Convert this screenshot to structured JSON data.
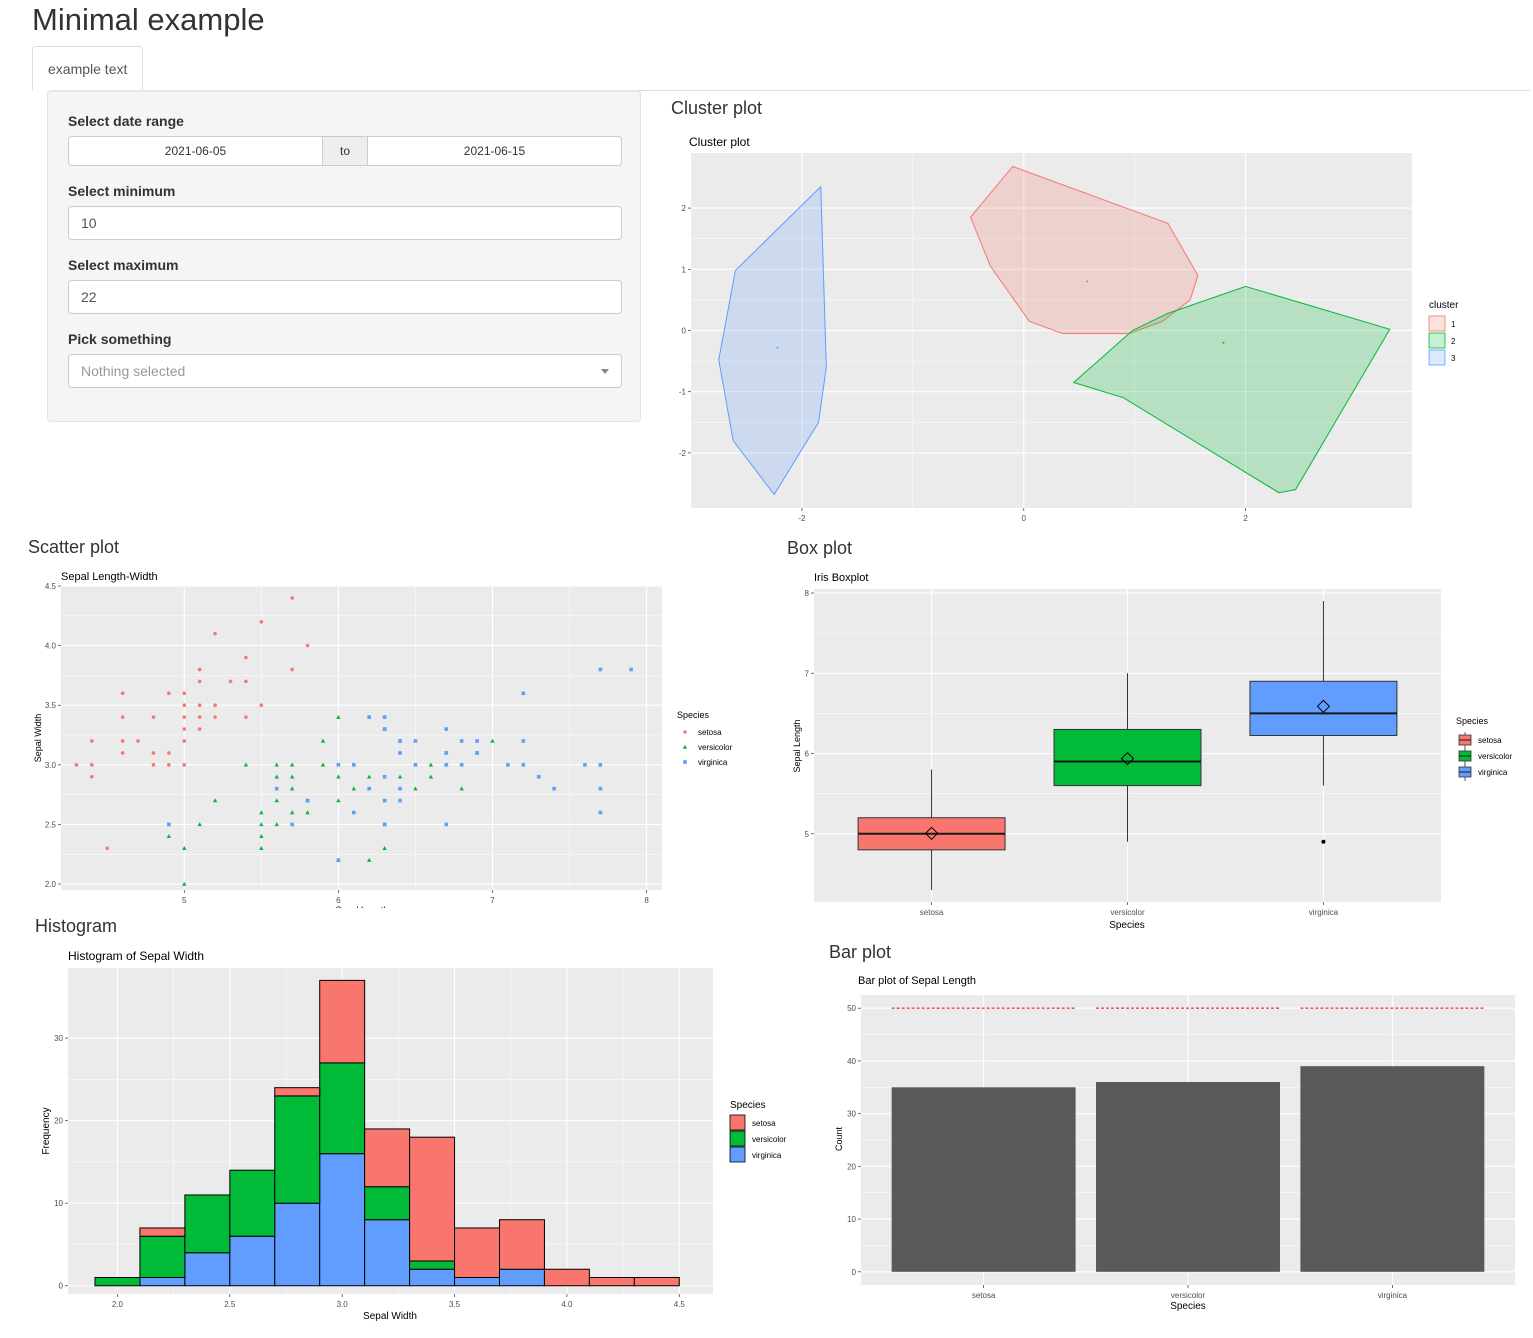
{
  "app": {
    "title": "Minimal example",
    "tab": "example text"
  },
  "sidebar": {
    "date_label": "Select date range",
    "date_start": "2021-06-05",
    "date_sep": "to",
    "date_end": "2021-06-15",
    "min_label": "Select minimum",
    "min_value": "10",
    "max_label": "Select maximum",
    "max_value": "22",
    "pick_label": "Pick something",
    "pick_placeholder": "Nothing selected"
  },
  "headings": {
    "cluster": "Cluster plot",
    "scatter": "Scatter plot",
    "box": "Box plot",
    "hist": "Histogram",
    "bar": "Bar plot"
  },
  "colors": {
    "red": "#F8766D",
    "green": "#00BA38",
    "blue": "#619CFF",
    "panel": "#EBEBEB",
    "grid": "#FFFFFF"
  },
  "chart_data": [
    {
      "id": "cluster",
      "type": "scatter",
      "title": "Cluster plot",
      "xlim": [
        -3.0,
        3.5
      ],
      "ylim": [
        -2.9,
        2.9
      ],
      "xticks": [
        -2,
        0,
        2
      ],
      "yticks": [
        -2,
        -1,
        0,
        1,
        2
      ],
      "legend_title": "cluster",
      "series": [
        {
          "name": "1",
          "centroid": [
            0.57,
            0.8
          ],
          "hull": [
            [
              -0.1,
              2.68
            ],
            [
              1.3,
              1.75
            ],
            [
              1.57,
              0.9
            ],
            [
              1.5,
              0.5
            ],
            [
              1.25,
              0.15
            ],
            [
              0.95,
              -0.05
            ],
            [
              0.35,
              -0.05
            ],
            [
              0.05,
              0.15
            ],
            [
              -0.3,
              1.05
            ],
            [
              -0.48,
              1.85
            ]
          ]
        },
        {
          "name": "2",
          "centroid": [
            1.8,
            -0.2
          ],
          "hull": [
            [
              2.0,
              0.72
            ],
            [
              3.3,
              0.02
            ],
            [
              2.45,
              -2.6
            ],
            [
              2.3,
              -2.65
            ],
            [
              0.9,
              -1.1
            ],
            [
              0.45,
              -0.85
            ],
            [
              0.98,
              0.0
            ],
            [
              1.3,
              0.28
            ]
          ]
        },
        {
          "name": "3",
          "centroid": [
            -2.22,
            -0.28
          ],
          "hull": [
            [
              -1.83,
              2.35
            ],
            [
              -1.78,
              -0.6
            ],
            [
              -1.85,
              -1.5
            ],
            [
              -2.25,
              -2.68
            ],
            [
              -2.62,
              -1.8
            ],
            [
              -2.75,
              -0.48
            ],
            [
              -2.6,
              0.98
            ]
          ]
        }
      ]
    },
    {
      "id": "scatter",
      "type": "scatter",
      "title": "Sepal Length-Width",
      "xlabel": "Sepal.Length",
      "ylabel": "Sepal Width",
      "xlim": [
        4.2,
        8.1
      ],
      "ylim": [
        1.95,
        4.5
      ],
      "xticks": [
        5,
        6,
        7,
        8
      ],
      "yticks": [
        2.0,
        2.5,
        3.0,
        3.5,
        4.0,
        4.5
      ],
      "legend_title": "Species",
      "series": [
        {
          "name": "setosa",
          "points": [
            [
              4.3,
              3.0
            ],
            [
              4.4,
              2.9
            ],
            [
              4.4,
              3.0
            ],
            [
              4.4,
              3.2
            ],
            [
              4.5,
              2.3
            ],
            [
              4.6,
              3.1
            ],
            [
              4.6,
              3.2
            ],
            [
              4.6,
              3.4
            ],
            [
              4.6,
              3.6
            ],
            [
              4.7,
              3.2
            ],
            [
              4.8,
              3.0
            ],
            [
              4.8,
              3.1
            ],
            [
              4.8,
              3.4
            ],
            [
              4.9,
              3.0
            ],
            [
              4.9,
              3.1
            ],
            [
              4.9,
              3.6
            ],
            [
              5.0,
              3.0
            ],
            [
              5.0,
              3.2
            ],
            [
              5.0,
              3.3
            ],
            [
              5.0,
              3.4
            ],
            [
              5.0,
              3.5
            ],
            [
              5.0,
              3.6
            ],
            [
              5.1,
              3.3
            ],
            [
              5.1,
              3.4
            ],
            [
              5.1,
              3.5
            ],
            [
              5.1,
              3.7
            ],
            [
              5.1,
              3.8
            ],
            [
              5.2,
              3.4
            ],
            [
              5.2,
              3.5
            ],
            [
              5.2,
              4.1
            ],
            [
              5.3,
              3.7
            ],
            [
              5.4,
              3.4
            ],
            [
              5.4,
              3.7
            ],
            [
              5.4,
              3.9
            ],
            [
              5.5,
              3.5
            ],
            [
              5.5,
              4.2
            ],
            [
              5.7,
              3.8
            ],
            [
              5.7,
              4.4
            ],
            [
              5.8,
              4.0
            ]
          ]
        },
        {
          "name": "versicolor",
          "points": [
            [
              4.9,
              2.4
            ],
            [
              5.0,
              2.0
            ],
            [
              5.0,
              2.3
            ],
            [
              5.1,
              2.5
            ],
            [
              5.2,
              2.7
            ],
            [
              5.4,
              3.0
            ],
            [
              5.5,
              2.3
            ],
            [
              5.5,
              2.4
            ],
            [
              5.5,
              2.5
            ],
            [
              5.5,
              2.6
            ],
            [
              5.6,
              2.5
            ],
            [
              5.6,
              2.7
            ],
            [
              5.6,
              2.9
            ],
            [
              5.6,
              3.0
            ],
            [
              5.7,
              2.6
            ],
            [
              5.7,
              2.8
            ],
            [
              5.7,
              2.9
            ],
            [
              5.7,
              3.0
            ],
            [
              5.8,
              2.6
            ],
            [
              5.8,
              2.7
            ],
            [
              5.9,
              3.0
            ],
            [
              5.9,
              3.2
            ],
            [
              6.0,
              2.2
            ],
            [
              6.0,
              2.7
            ],
            [
              6.0,
              2.9
            ],
            [
              6.0,
              3.4
            ],
            [
              6.1,
              2.8
            ],
            [
              6.1,
              3.0
            ],
            [
              6.2,
              2.2
            ],
            [
              6.2,
              2.9
            ],
            [
              6.3,
              2.3
            ],
            [
              6.3,
              2.5
            ],
            [
              6.3,
              3.3
            ],
            [
              6.4,
              2.9
            ],
            [
              6.4,
              3.2
            ],
            [
              6.5,
              2.8
            ],
            [
              6.6,
              2.9
            ],
            [
              6.6,
              3.0
            ],
            [
              6.7,
              3.0
            ],
            [
              6.7,
              3.1
            ],
            [
              6.8,
              2.8
            ],
            [
              6.9,
              3.1
            ],
            [
              7.0,
              3.2
            ]
          ]
        },
        {
          "name": "virginica",
          "points": [
            [
              4.9,
              2.5
            ],
            [
              5.6,
              2.8
            ],
            [
              5.7,
              2.5
            ],
            [
              5.8,
              2.7
            ],
            [
              6.0,
              2.2
            ],
            [
              6.0,
              3.0
            ],
            [
              6.1,
              2.6
            ],
            [
              6.1,
              3.0
            ],
            [
              6.2,
              2.8
            ],
            [
              6.2,
              3.4
            ],
            [
              6.3,
              2.5
            ],
            [
              6.3,
              2.7
            ],
            [
              6.3,
              2.9
            ],
            [
              6.3,
              3.3
            ],
            [
              6.3,
              3.4
            ],
            [
              6.4,
              2.7
            ],
            [
              6.4,
              2.8
            ],
            [
              6.4,
              3.1
            ],
            [
              6.4,
              3.2
            ],
            [
              6.5,
              3.0
            ],
            [
              6.5,
              3.2
            ],
            [
              6.7,
              2.5
            ],
            [
              6.7,
              3.0
            ],
            [
              6.7,
              3.1
            ],
            [
              6.7,
              3.3
            ],
            [
              6.8,
              3.0
            ],
            [
              6.8,
              3.2
            ],
            [
              6.9,
              3.1
            ],
            [
              6.9,
              3.2
            ],
            [
              7.1,
              3.0
            ],
            [
              7.2,
              3.0
            ],
            [
              7.2,
              3.2
            ],
            [
              7.2,
              3.6
            ],
            [
              7.3,
              2.9
            ],
            [
              7.4,
              2.8
            ],
            [
              7.6,
              3.0
            ],
            [
              7.7,
              2.6
            ],
            [
              7.7,
              2.8
            ],
            [
              7.7,
              3.0
            ],
            [
              7.7,
              3.8
            ],
            [
              7.9,
              3.8
            ]
          ]
        }
      ]
    },
    {
      "id": "box",
      "type": "box",
      "title": "Iris Boxplot",
      "xlabel": "Species",
      "ylabel": "Sepal Length",
      "categories": [
        "setosa",
        "versicolor",
        "virginica"
      ],
      "ylim": [
        4.15,
        8.05
      ],
      "yticks": [
        5,
        6,
        7,
        8
      ],
      "legend_title": "Species",
      "legend_labels": [
        "setosa",
        "versicolor",
        "virginica"
      ],
      "boxes": [
        {
          "min": 4.3,
          "q1": 4.8,
          "median": 5.0,
          "q3": 5.2,
          "max": 5.8,
          "mean": 5.006,
          "outliers": []
        },
        {
          "min": 4.9,
          "q1": 5.6,
          "median": 5.9,
          "q3": 6.3,
          "max": 7.0,
          "mean": 5.936,
          "outliers": []
        },
        {
          "min": 5.6,
          "q1": 6.225,
          "median": 6.5,
          "q3": 6.9,
          "max": 7.9,
          "mean": 6.588,
          "outliers": [
            4.9
          ]
        }
      ]
    },
    {
      "id": "hist",
      "type": "bar",
      "title": "Histogram of Sepal Width",
      "xlabel": "Sepal Width",
      "ylabel": "Frequency",
      "xlim": [
        1.78,
        4.65
      ],
      "ylim": [
        -1,
        38.5
      ],
      "xticks": [
        2.0,
        2.5,
        3.0,
        3.5,
        4.0,
        4.5
      ],
      "yticks": [
        0,
        10,
        20,
        30
      ],
      "bin_starts": [
        1.9,
        2.1,
        2.3,
        2.5,
        2.7,
        2.9,
        3.1,
        3.3,
        3.5,
        3.7,
        3.9,
        4.1,
        4.3
      ],
      "bin_width": 0.2,
      "legend_title": "Species",
      "series": [
        {
          "name": "virginica",
          "values": [
            0,
            1,
            4,
            6,
            10,
            16,
            8,
            2,
            1,
            2,
            0,
            0,
            0
          ]
        },
        {
          "name": "versicolor",
          "values": [
            1,
            5,
            7,
            8,
            13,
            11,
            4,
            1,
            0,
            0,
            0,
            0,
            0
          ]
        },
        {
          "name": "setosa",
          "values": [
            0,
            1,
            0,
            0,
            1,
            10,
            7,
            15,
            6,
            6,
            2,
            1,
            1
          ]
        }
      ]
    },
    {
      "id": "bar",
      "type": "bar",
      "title": "Bar plot of Sepal Length",
      "xlabel": "Species",
      "ylabel": "Count",
      "categories": [
        "setosa",
        "versicolor",
        "virginica"
      ],
      "values": [
        35,
        36,
        39
      ],
      "reference_line": 50,
      "ylim": [
        -2.5,
        52.5
      ],
      "yticks": [
        0,
        10,
        20,
        30,
        40,
        50
      ]
    }
  ]
}
